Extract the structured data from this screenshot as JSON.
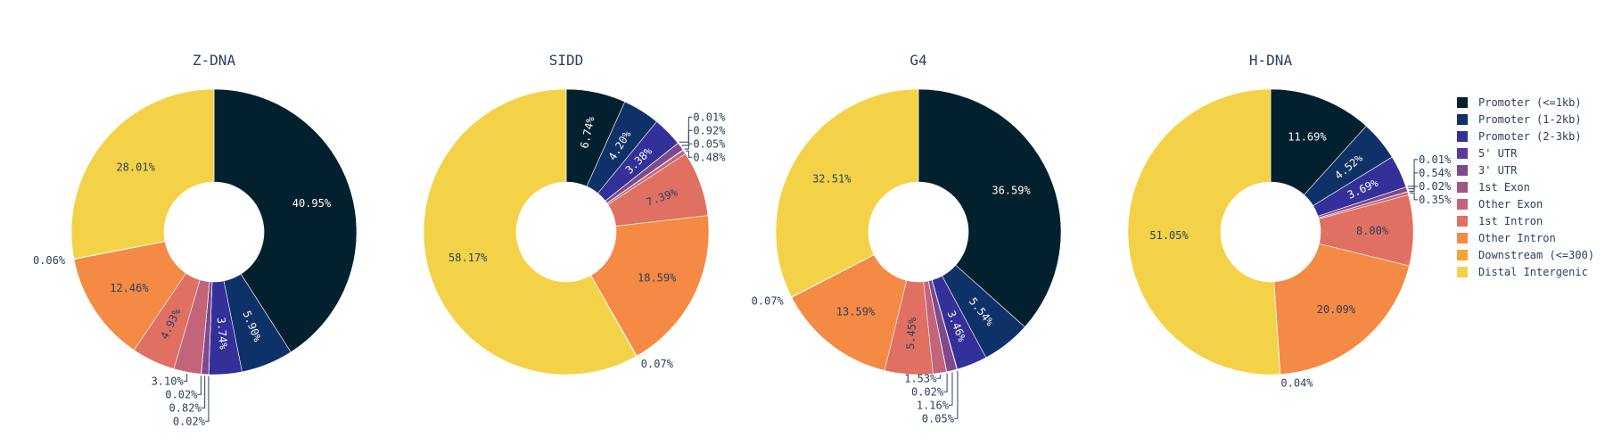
{
  "legend": {
    "items": [
      {
        "name": "Promoter (<=1kb)",
        "color": "#03202f"
      },
      {
        "name": "Promoter (1-2kb)",
        "color": "#0e3167"
      },
      {
        "name": "Promoter (2-3kb)",
        "color": "#33309a"
      },
      {
        "name": "5' UTR",
        "color": "#5b3a97"
      },
      {
        "name": "3' UTR",
        "color": "#7e4a8c"
      },
      {
        "name": "1st Exon",
        "color": "#a3557f"
      },
      {
        "name": "Other Exon",
        "color": "#c4647a"
      },
      {
        "name": "1st Intron",
        "color": "#e07061"
      },
      {
        "name": "Other Intron",
        "color": "#f48a43"
      },
      {
        "name": "Downstream (<=300)",
        "color": "#f6a532"
      },
      {
        "name": "Distal Intergenic",
        "color": "#f4d247"
      }
    ],
    "placement": "right"
  },
  "chart_data": [
    {
      "type": "pie",
      "title": "Z-DNA",
      "categories": [
        "Promoter (<=1kb)",
        "Promoter (1-2kb)",
        "Promoter (2-3kb)",
        "5' UTR",
        "3' UTR",
        "1st Exon",
        "Other Exon",
        "1st Intron",
        "Other Intron",
        "Downstream (<=300)",
        "Distal Intergenic"
      ],
      "values": [
        40.95,
        5.9,
        3.74,
        0.02,
        0.82,
        0.02,
        3.1,
        4.93,
        12.46,
        0.06,
        28.01
      ],
      "labels": [
        "40.95%",
        "5.90%",
        "3.74%",
        "0.02%",
        "0.82%",
        "0.02%",
        "3.10%",
        "4.93%",
        "12.46%",
        "0.06%",
        "28.01%"
      ],
      "hole": 0.35
    },
    {
      "type": "pie",
      "title": "SIDD",
      "categories": [
        "Promoter (<=1kb)",
        "Promoter (1-2kb)",
        "Promoter (2-3kb)",
        "5' UTR",
        "3' UTR",
        "1st Exon",
        "Other Exon",
        "1st Intron",
        "Other Intron",
        "Downstream (<=300)",
        "Distal Intergenic"
      ],
      "values": [
        6.74,
        4.2,
        3.38,
        0.01,
        0.92,
        0.05,
        0.48,
        7.39,
        18.59,
        0.07,
        58.17
      ],
      "labels": [
        "6.74%",
        "4.20%",
        "3.38%",
        "0.01%",
        "0.92%",
        "0.05%",
        "0.48%",
        "7.39%",
        "18.59%",
        "0.07%",
        "58.17%"
      ],
      "hole": 0.35
    },
    {
      "type": "pie",
      "title": "G4",
      "categories": [
        "Promoter (<=1kb)",
        "Promoter (1-2kb)",
        "Promoter (2-3kb)",
        "5' UTR",
        "3' UTR",
        "1st Exon",
        "Other Exon",
        "1st Intron",
        "Other Intron",
        "Downstream (<=300)",
        "Distal Intergenic"
      ],
      "values": [
        36.59,
        5.54,
        3.46,
        0.05,
        1.16,
        0.02,
        1.53,
        5.45,
        13.59,
        0.07,
        32.51
      ],
      "labels": [
        "36.59%",
        "5.54%",
        "3.46%",
        "0.05%",
        "1.16%",
        "0.02%",
        "1.53%",
        "5.45%",
        "13.59%",
        "0.07%",
        "32.51%"
      ],
      "hole": 0.35
    },
    {
      "type": "pie",
      "title": "H-DNA",
      "categories": [
        "Promoter (<=1kb)",
        "Promoter (1-2kb)",
        "Promoter (2-3kb)",
        "5' UTR",
        "3' UTR",
        "1st Exon",
        "Other Exon",
        "1st Intron",
        "Other Intron",
        "Downstream (<=300)",
        "Distal Intergenic"
      ],
      "values": [
        11.69,
        4.52,
        3.69,
        0.01,
        0.54,
        0.02,
        0.35,
        8.0,
        20.09,
        0.04,
        51.05
      ],
      "labels": [
        "11.69%",
        "4.52%",
        "3.69%",
        "0.01%",
        "0.54%",
        "0.02%",
        "0.35%",
        "8.00%",
        "20.09%",
        "0.04%",
        "51.05%"
      ],
      "hole": 0.35
    }
  ]
}
